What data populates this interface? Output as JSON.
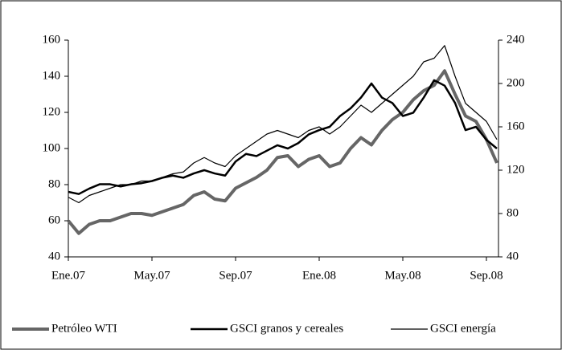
{
  "chart_data": {
    "type": "line",
    "categories": [
      "Ene.07",
      null,
      null,
      null,
      null,
      null,
      null,
      null,
      "May.07",
      null,
      null,
      null,
      null,
      null,
      null,
      null,
      "Sep.07",
      null,
      null,
      null,
      null,
      null,
      null,
      null,
      "Ene.08",
      null,
      null,
      null,
      null,
      null,
      null,
      null,
      "May.08",
      null,
      null,
      null,
      null,
      null,
      null,
      null,
      "Sep.08",
      null
    ],
    "series": [
      {
        "name": "Petróleo WTI",
        "color": "#666666",
        "width": 4,
        "axis": "y",
        "values": [
          60,
          53,
          58,
          60,
          60,
          62,
          64,
          64,
          63,
          65,
          67,
          69,
          74,
          76,
          72,
          71,
          78,
          81,
          84,
          88,
          95,
          96,
          90,
          94,
          96,
          90,
          92,
          100,
          106,
          102,
          110,
          116,
          120,
          127,
          132,
          135,
          143,
          130,
          118,
          115,
          105,
          92
        ]
      },
      {
        "name": "GSCI granos y cereales",
        "color": "#000000",
        "width": 2.5,
        "axis": "y2",
        "values": [
          100,
          98,
          103,
          107,
          107,
          105,
          107,
          108,
          110,
          113,
          115,
          113,
          117,
          120,
          117,
          115,
          128,
          135,
          133,
          138,
          143,
          140,
          145,
          153,
          157,
          160,
          170,
          177,
          187,
          200,
          187,
          182,
          170,
          173,
          187,
          203,
          198,
          182,
          157,
          160,
          148,
          140
        ]
      },
      {
        "name": "GSCI energía",
        "color": "#000000",
        "width": 1.2,
        "axis": "y",
        "values": [
          73,
          70,
          74,
          76,
          78,
          80,
          80,
          82,
          82,
          84,
          86,
          87,
          92,
          95,
          92,
          90,
          96,
          100,
          104,
          108,
          110,
          108,
          106,
          110,
          112,
          108,
          112,
          118,
          124,
          120,
          125,
          130,
          135,
          140,
          148,
          150,
          157,
          140,
          125,
          120,
          115,
          105
        ]
      }
    ],
    "ylim": [
      40,
      160
    ],
    "yticks": [
      40,
      60,
      80,
      100,
      120,
      140,
      160
    ],
    "y2lim": [
      40,
      240
    ],
    "y2ticks": [
      40,
      80,
      120,
      160,
      200,
      240
    ],
    "legend": "bottom"
  }
}
